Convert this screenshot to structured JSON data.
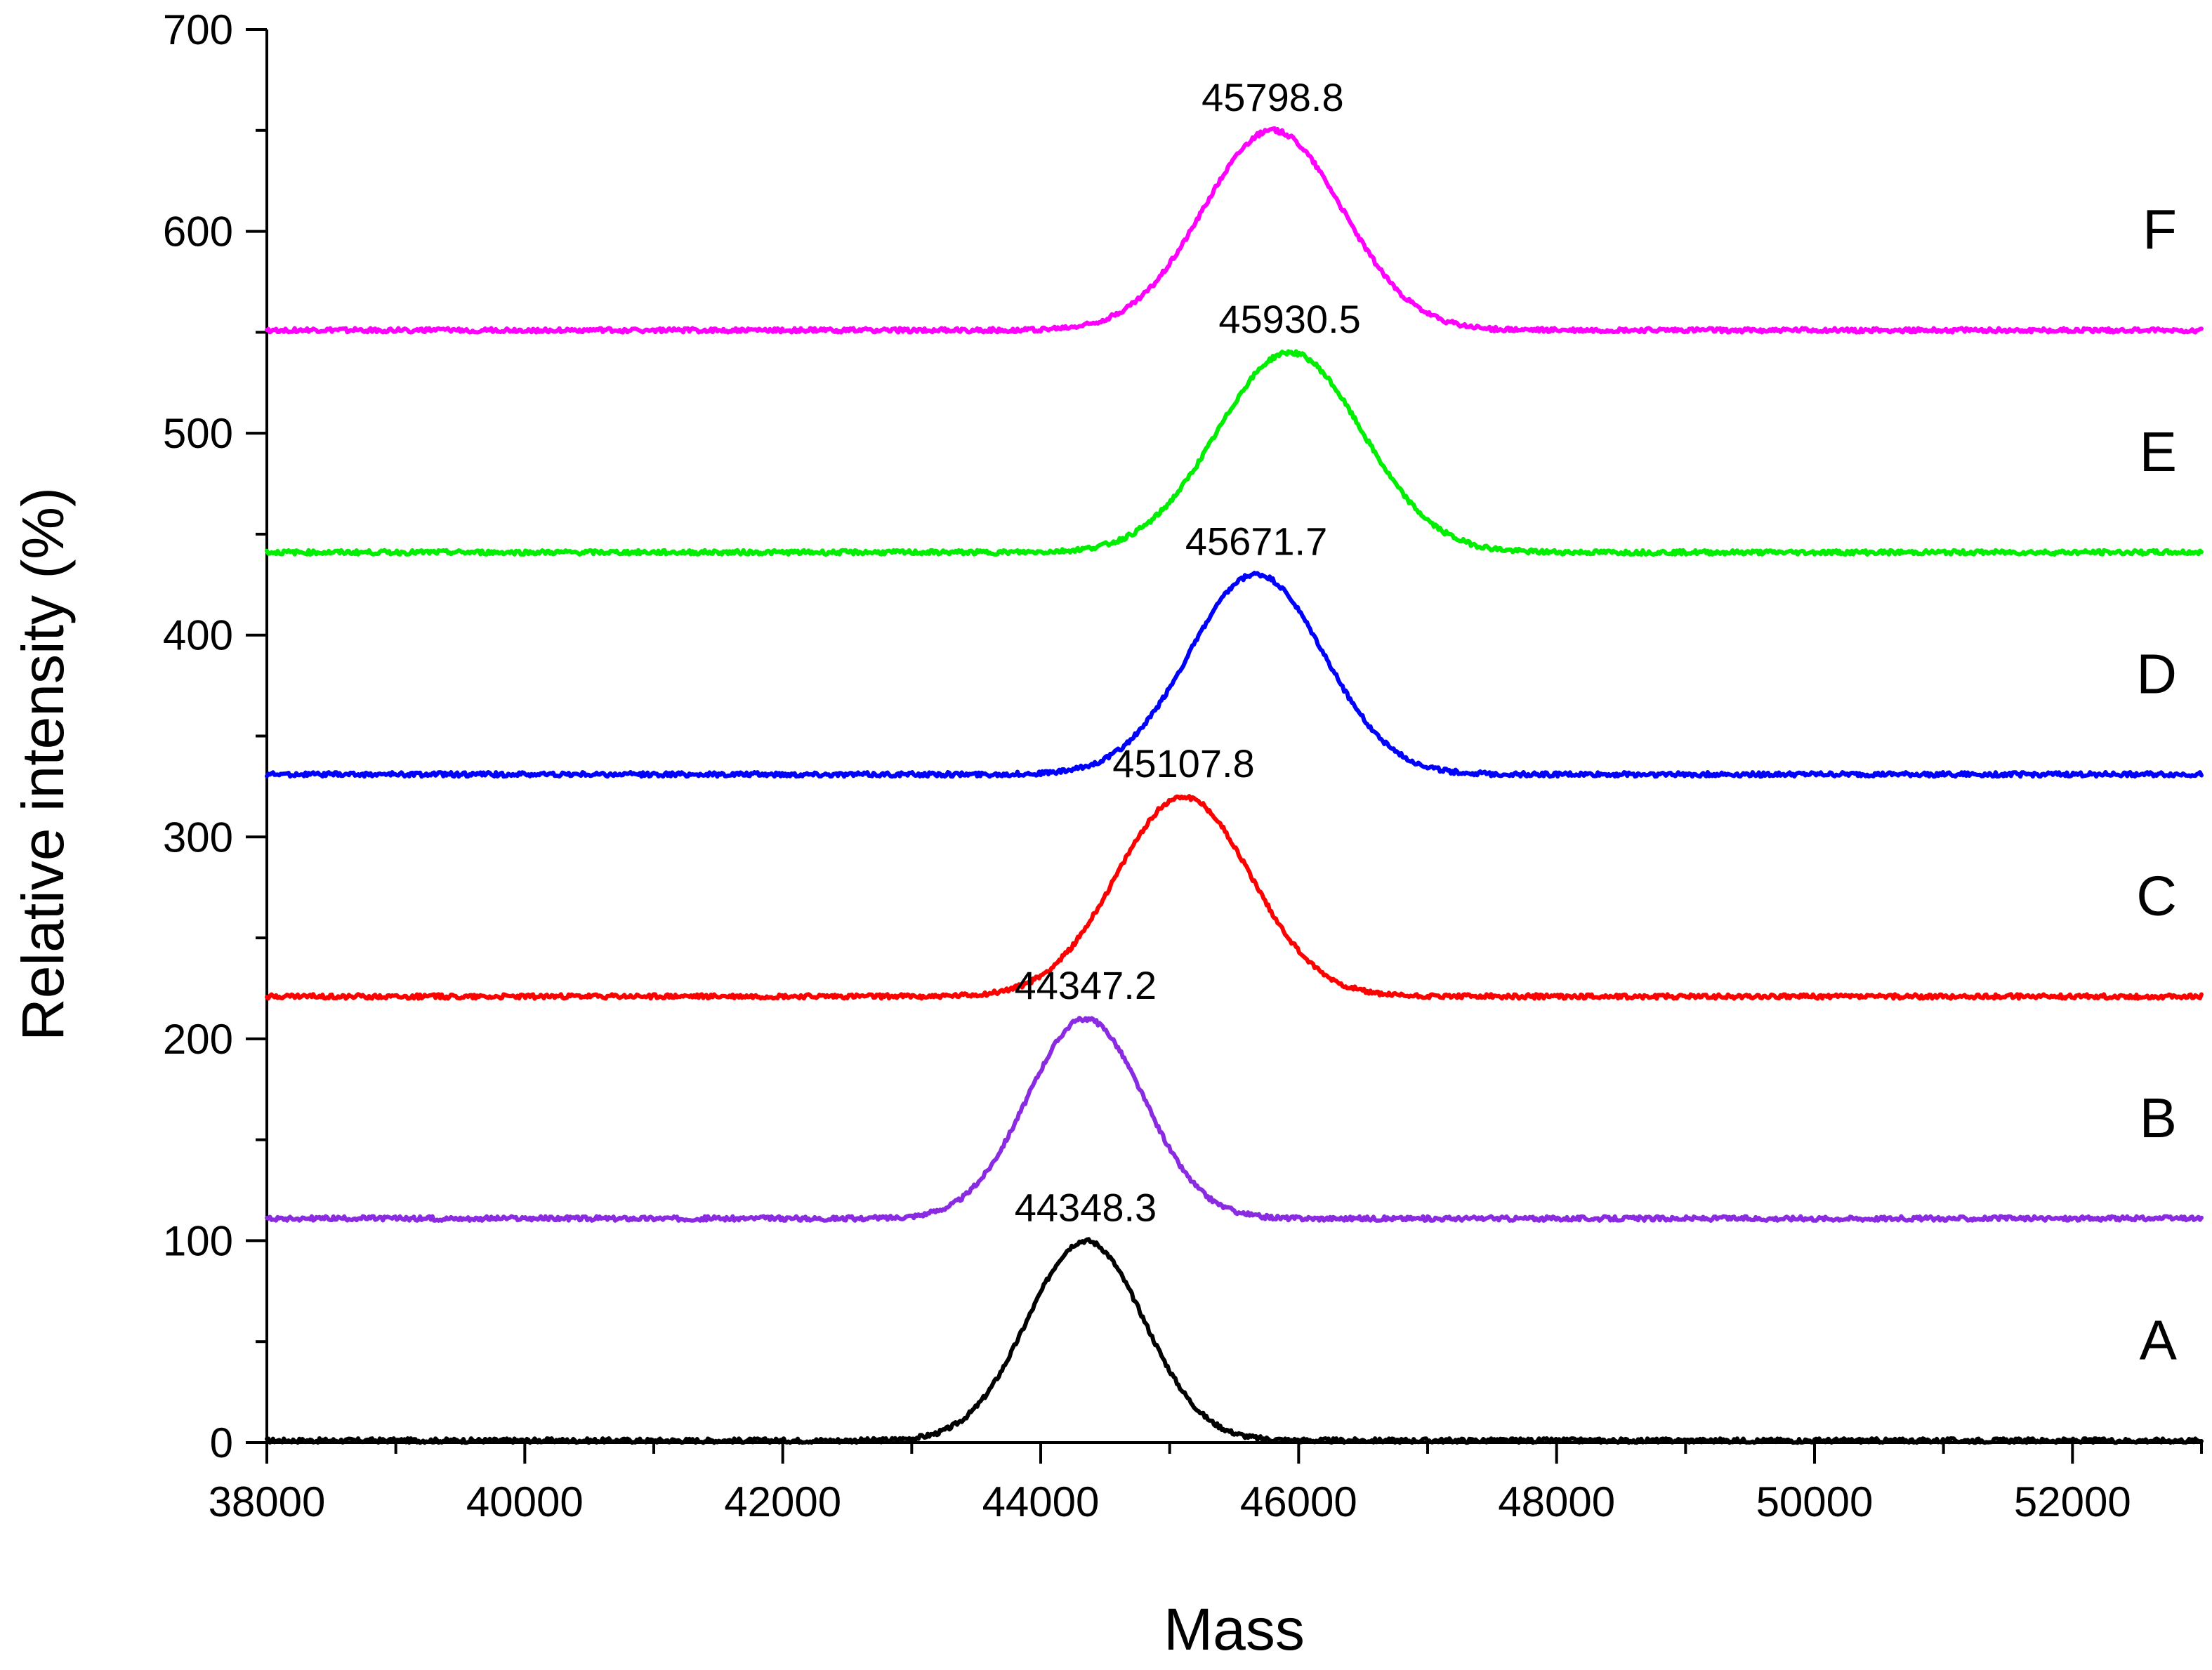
{
  "chart_data": {
    "type": "line",
    "title": "",
    "xlabel": "Mass",
    "ylabel": "Relative intensity (%)",
    "xlim": [
      38000,
      53000
    ],
    "ylim": [
      0,
      700
    ],
    "x_ticks": [
      "38000",
      "40000",
      "42000",
      "44000",
      "46000",
      "48000",
      "50000",
      "52000"
    ],
    "x_tick_values": [
      38000,
      40000,
      42000,
      44000,
      46000,
      48000,
      50000,
      52000
    ],
    "y_ticks": [
      "0",
      "100",
      "200",
      "300",
      "400",
      "500",
      "600",
      "700"
    ],
    "y_tick_values": [
      0,
      100,
      200,
      300,
      400,
      500,
      600,
      700
    ],
    "grid": false,
    "legend": "none",
    "series": [
      {
        "trace_label": "A",
        "color": "#000000",
        "baseline": 1,
        "peak_mass": 44348.3,
        "peak_intensity": 100,
        "peak_label": "44348.3",
        "peak_sigma": 450
      },
      {
        "trace_label": "B",
        "color": "#8a2be2",
        "baseline": 111,
        "peak_mass": 44347.2,
        "peak_intensity": 210,
        "peak_label": "44347.2",
        "peak_sigma": 450
      },
      {
        "trace_label": "C",
        "color": "#ff0000",
        "baseline": 221,
        "peak_mass": 45107.8,
        "peak_intensity": 320,
        "peak_label": "45107.8",
        "peak_sigma": 520
      },
      {
        "trace_label": "D",
        "color": "#0000ff",
        "baseline": 331,
        "peak_mass": 45671.7,
        "peak_intensity": 430,
        "peak_label": "45671.7",
        "peak_sigma": 520
      },
      {
        "trace_label": "E",
        "color": "#00ee00",
        "baseline": 441,
        "peak_mass": 45930.5,
        "peak_intensity": 540,
        "peak_label": "45930.5",
        "peak_sigma": 560
      },
      {
        "trace_label": "F",
        "color": "#ff00ff",
        "baseline": 551,
        "peak_mass": 45798.8,
        "peak_intensity": 650,
        "peak_label": "45798.8",
        "peak_sigma": 540
      }
    ]
  }
}
